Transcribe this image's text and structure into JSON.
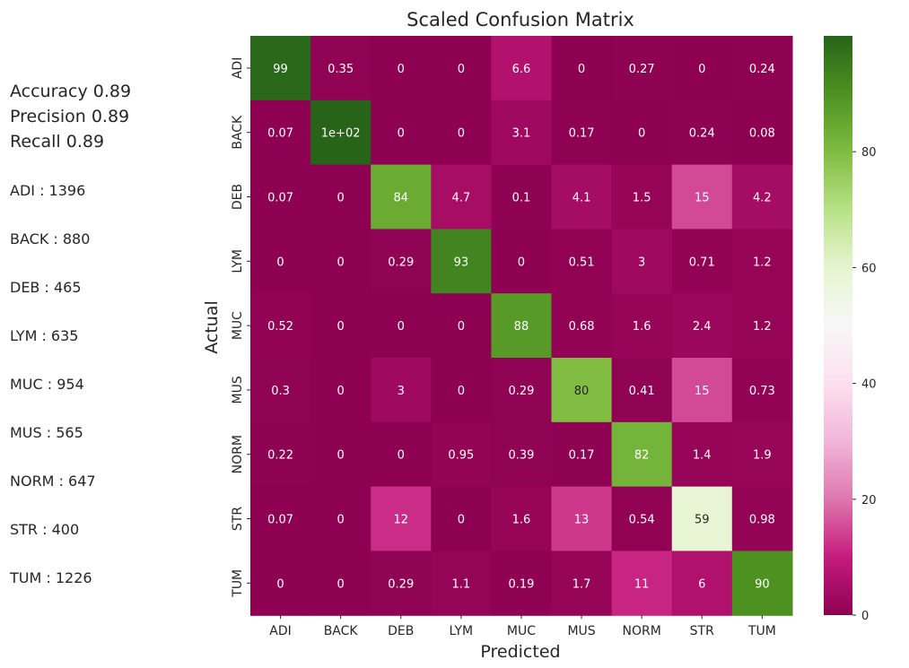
{
  "summary": {
    "metrics": [
      {
        "label": "Accuracy",
        "value": "0.89"
      },
      {
        "label": "Precision",
        "value": "0.89"
      },
      {
        "label": "Recall",
        "value": "0.89"
      }
    ],
    "class_counts": [
      {
        "label": "ADI",
        "count": "1396"
      },
      {
        "label": "BACK",
        "count": "880"
      },
      {
        "label": "DEB",
        "count": "465"
      },
      {
        "label": "LYM",
        "count": "635"
      },
      {
        "label": "MUC",
        "count": "954"
      },
      {
        "label": "MUS",
        "count": "565"
      },
      {
        "label": "NORM",
        "count": "647"
      },
      {
        "label": "STR",
        "count": "400"
      },
      {
        "label": "TUM",
        "count": "1226"
      }
    ]
  },
  "chart_data": {
    "type": "heatmap",
    "title": "Scaled Confusion Matrix",
    "xlabel": "Predicted",
    "ylabel": "Actual",
    "x_categories": [
      "ADI",
      "BACK",
      "DEB",
      "LYM",
      "MUC",
      "MUS",
      "NORM",
      "STR",
      "TUM"
    ],
    "y_categories": [
      "ADI",
      "BACK",
      "DEB",
      "LYM",
      "MUC",
      "MUS",
      "NORM",
      "STR",
      "TUM"
    ],
    "values": [
      [
        99,
        0.35,
        0,
        0,
        6.6,
        0,
        0.27,
        0,
        0.24
      ],
      [
        0.07,
        100,
        0,
        0,
        3.1,
        0.17,
        0,
        0.24,
        0.08
      ],
      [
        0.07,
        0,
        84,
        4.7,
        0.1,
        4.1,
        1.5,
        15,
        4.2
      ],
      [
        0,
        0,
        0.29,
        93,
        0,
        0.51,
        3,
        0.71,
        1.2
      ],
      [
        0.52,
        0,
        0,
        0,
        88,
        0.68,
        1.6,
        2.4,
        1.2
      ],
      [
        0.3,
        0,
        3,
        0,
        0.29,
        80,
        0.41,
        15,
        0.73
      ],
      [
        0.22,
        0,
        0,
        0.95,
        0.39,
        0.17,
        82,
        1.4,
        1.9
      ],
      [
        0.07,
        0,
        12,
        0,
        1.6,
        13,
        0.54,
        59,
        0.98
      ],
      [
        0,
        0,
        0.29,
        1.1,
        0.19,
        1.7,
        11,
        6,
        90
      ]
    ],
    "labels": [
      [
        "99",
        "0.35",
        "0",
        "0",
        "6.6",
        "0",
        "0.27",
        "0",
        "0.24"
      ],
      [
        "0.07",
        "1e+02",
        "0",
        "0",
        "3.1",
        "0.17",
        "0",
        "0.24",
        "0.08"
      ],
      [
        "0.07",
        "0",
        "84",
        "4.7",
        "0.1",
        "4.1",
        "1.5",
        "15",
        "4.2"
      ],
      [
        "0",
        "0",
        "0.29",
        "93",
        "0",
        "0.51",
        "3",
        "0.71",
        "1.2"
      ],
      [
        "0.52",
        "0",
        "0",
        "0",
        "88",
        "0.68",
        "1.6",
        "2.4",
        "1.2"
      ],
      [
        "0.3",
        "0",
        "3",
        "0",
        "0.29",
        "80",
        "0.41",
        "15",
        "0.73"
      ],
      [
        "0.22",
        "0",
        "0",
        "0.95",
        "0.39",
        "0.17",
        "82",
        "1.4",
        "1.9"
      ],
      [
        "0.07",
        "0",
        "12",
        "0",
        "1.6",
        "13",
        "0.54",
        "59",
        "0.98"
      ],
      [
        "0",
        "0",
        "0.29",
        "1.1",
        "0.19",
        "1.7",
        "11",
        "6",
        "90"
      ]
    ],
    "colormap": "PiYG",
    "colorbar": {
      "min": 0,
      "max": 100,
      "ticks": [
        0,
        20,
        40,
        60,
        80
      ]
    },
    "grid": false
  }
}
